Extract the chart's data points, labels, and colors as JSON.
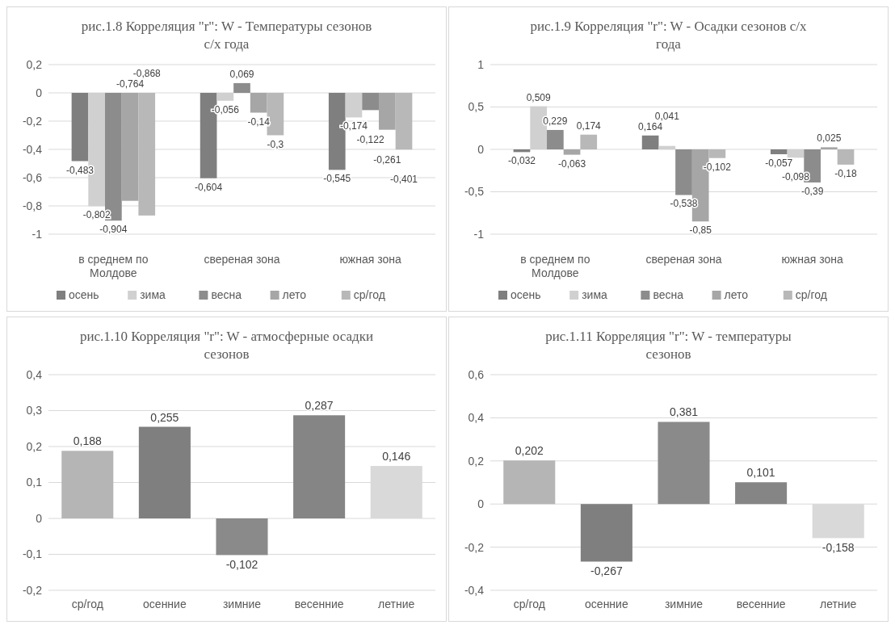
{
  "chart_data": [
    {
      "type": "bar",
      "title": "рис.1.8  Корреляция \"r\": W - Температуры сезонов с/х года",
      "categories": [
        "в среднем по Молдове",
        "свереная зона",
        "южная зона"
      ],
      "series": [
        {
          "name": "осень",
          "color": "#7f7f7f",
          "values": [
            -0.483,
            -0.604,
            -0.545
          ],
          "value_labels": [
            "-0,483",
            "-0,604",
            "-0,545"
          ]
        },
        {
          "name": "зима",
          "color": "#d0d0d0",
          "values": [
            -0.802,
            -0.056,
            -0.174
          ],
          "value_labels": [
            "-0,802",
            "-0,056",
            "-0,174"
          ]
        },
        {
          "name": "весна",
          "color": "#8c8c8c",
          "values": [
            -0.904,
            0.069,
            -0.122
          ],
          "value_labels": [
            "-0,904",
            "0,069",
            "-0,122"
          ]
        },
        {
          "name": "лето",
          "color": "#a6a6a6",
          "values": [
            -0.764,
            -0.14,
            -0.261
          ],
          "value_labels": [
            "-0,764",
            "-0,14",
            "-0,261"
          ]
        },
        {
          "name": "ср/год",
          "color": "#b8b8b8",
          "values": [
            -0.868,
            -0.3,
            -0.401
          ],
          "value_labels": [
            "-0,868",
            "-0,3",
            "-0,401"
          ]
        }
      ],
      "ylim": [
        -1,
        0.2
      ],
      "yticks": [
        {
          "value": -1,
          "label": "-1"
        },
        {
          "value": -0.8,
          "label": "-0,8"
        },
        {
          "value": -0.6,
          "label": "-0,6"
        },
        {
          "value": -0.4,
          "label": "-0,4"
        },
        {
          "value": -0.2,
          "label": "-0,2"
        },
        {
          "value": 0,
          "label": "0"
        },
        {
          "value": 0.2,
          "label": "0,2"
        }
      ],
      "grid": "y",
      "legend": "bottom"
    },
    {
      "type": "bar",
      "title": "рис.1.9  Корреляция \"r\": W - Осадки сезонов с/х года",
      "categories": [
        "в среднем по Молдове",
        "свереная зона",
        "южная зона"
      ],
      "series": [
        {
          "name": "осень",
          "color": "#7f7f7f",
          "values": [
            -0.032,
            0.164,
            -0.057
          ],
          "value_labels": [
            "-0,032",
            "0,164",
            "-0,057"
          ]
        },
        {
          "name": "зима",
          "color": "#d0d0d0",
          "values": [
            0.509,
            0.041,
            -0.098
          ],
          "value_labels": [
            "0,509",
            "0,041",
            "-0,098"
          ]
        },
        {
          "name": "весна",
          "color": "#8c8c8c",
          "values": [
            0.229,
            -0.538,
            -0.39
          ],
          "value_labels": [
            "0,229",
            "-0,538",
            "-0,39"
          ]
        },
        {
          "name": "лето",
          "color": "#a6a6a6",
          "values": [
            -0.063,
            -0.85,
            0.025
          ],
          "value_labels": [
            "-0,063",
            "-0,85",
            "0,025"
          ]
        },
        {
          "name": "ср/год",
          "color": "#b8b8b8",
          "values": [
            0.174,
            -0.102,
            -0.18
          ],
          "value_labels": [
            "0,174",
            "-0,102",
            "-0,18"
          ]
        }
      ],
      "ylim": [
        -1,
        1
      ],
      "yticks": [
        {
          "value": -1,
          "label": "-1"
        },
        {
          "value": -0.5,
          "label": "-0,5"
        },
        {
          "value": 0,
          "label": "0"
        },
        {
          "value": 0.5,
          "label": "0,5"
        },
        {
          "value": 1,
          "label": "1"
        }
      ],
      "grid": "y",
      "legend": "bottom"
    },
    {
      "type": "bar",
      "title": "рис.1.10  Корреляция \"r\": W - атмосферные осадки сезонов",
      "categories": [
        "ср/год",
        "осенние",
        "зимние",
        "весенние",
        "летние"
      ],
      "values": [
        0.188,
        0.255,
        -0.102,
        0.287,
        0.146
      ],
      "colors": [
        "#b5b5b5",
        "#7f7f7f",
        "#8a8a8a",
        "#858585",
        "#d9d9d9"
      ],
      "value_labels": [
        "0,188",
        "0,255",
        "-0,102",
        "0,287",
        "0,146"
      ],
      "ylim": [
        -0.2,
        0.4
      ],
      "yticks": [
        {
          "value": -0.2,
          "label": "-0,2"
        },
        {
          "value": -0.1,
          "label": "-0,1"
        },
        {
          "value": 0,
          "label": "0"
        },
        {
          "value": 0.1,
          "label": "0,1"
        },
        {
          "value": 0.2,
          "label": "0,2"
        },
        {
          "value": 0.3,
          "label": "0,3"
        },
        {
          "value": 0.4,
          "label": "0,4"
        }
      ],
      "grid": "y"
    },
    {
      "type": "bar",
      "title": "рис.1.11  Корреляция \"r\": W - температуры сезонов",
      "categories": [
        "ср/год",
        "осенние",
        "зимние",
        "весенние",
        "летние"
      ],
      "values": [
        0.202,
        -0.267,
        0.381,
        0.101,
        -0.158
      ],
      "colors": [
        "#b5b5b5",
        "#7f7f7f",
        "#8a8a8a",
        "#858585",
        "#d9d9d9"
      ],
      "value_labels": [
        "0,202",
        "-0,267",
        "0,381",
        "0,101",
        "-0,158"
      ],
      "ylim": [
        -0.4,
        0.6
      ],
      "yticks": [
        {
          "value": -0.4,
          "label": "-0,4"
        },
        {
          "value": -0.2,
          "label": "-0,2"
        },
        {
          "value": 0,
          "label": "0"
        },
        {
          "value": 0.2,
          "label": "0,2"
        },
        {
          "value": 0.4,
          "label": "0,4"
        },
        {
          "value": 0.6,
          "label": "0,6"
        }
      ],
      "grid": "y"
    }
  ]
}
